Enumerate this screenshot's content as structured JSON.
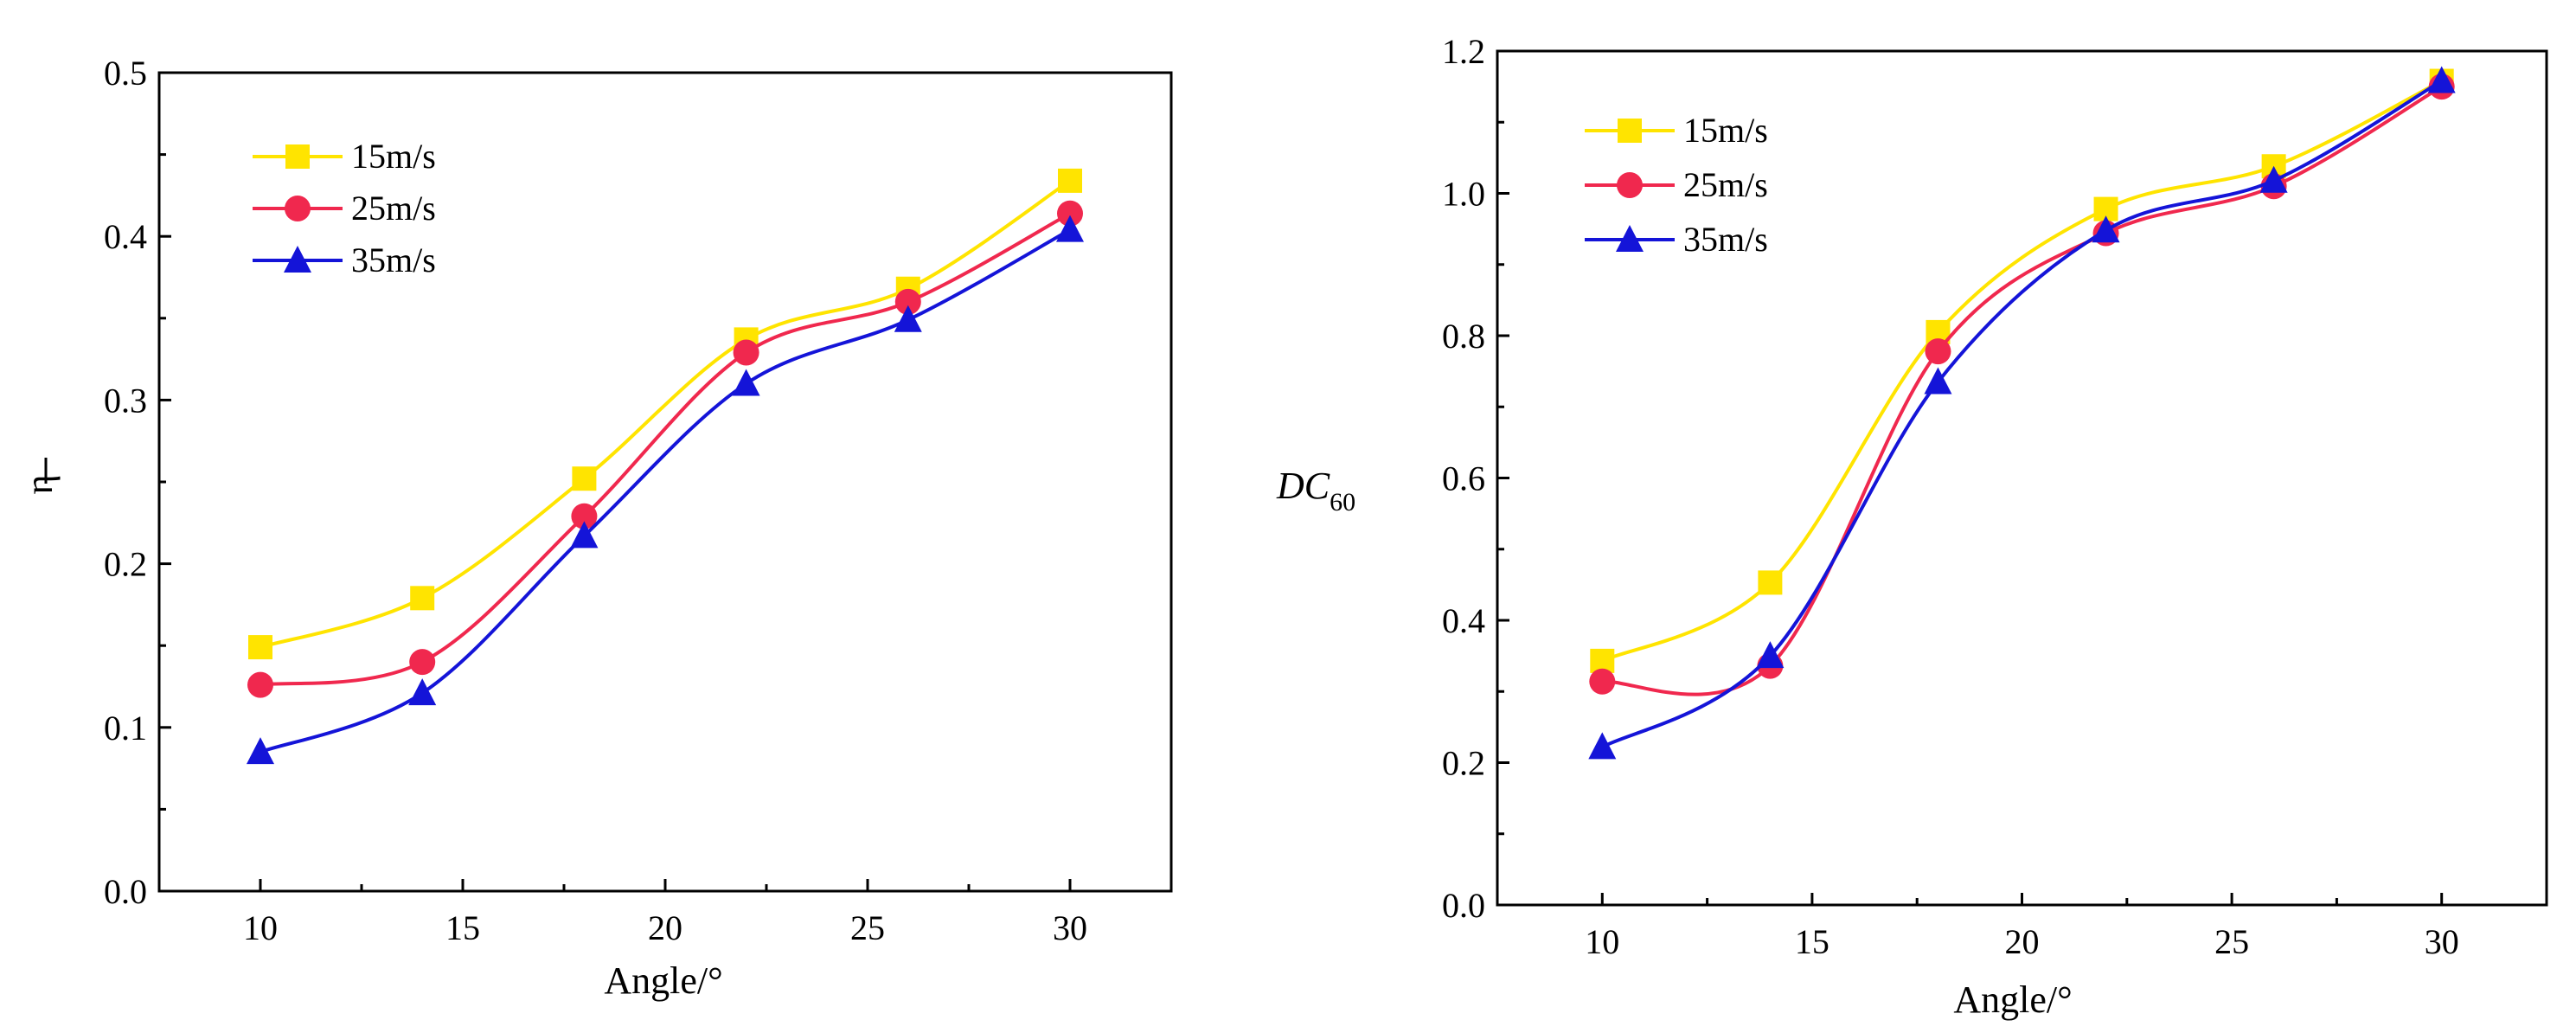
{
  "chart_data": [
    {
      "type": "line",
      "title": "",
      "xlabel": "Angle/°",
      "ylabel": "η",
      "ylabel_overbar": true,
      "xlim": [
        7.5,
        32.5
      ],
      "ylim": [
        0,
        0.5
      ],
      "xticks": [
        10,
        15,
        20,
        25,
        30
      ],
      "xtick_labels": [
        "10",
        "15",
        "20",
        "25",
        "30"
      ],
      "yticks": [
        0,
        0.1,
        0.2,
        0.3,
        0.4,
        0.5
      ],
      "ytick_labels": [
        "0.0",
        "0.1",
        "0.2",
        "0.3",
        "0.4",
        "0.5"
      ],
      "grid": false,
      "legend_position": "top-left",
      "x": [
        10,
        14,
        18,
        22,
        26,
        30
      ],
      "series": [
        {
          "name": "15m/s",
          "color": "#FFE400",
          "marker": "square",
          "values": [
            0.149,
            0.179,
            0.252,
            0.337,
            0.368,
            0.434
          ]
        },
        {
          "name": "25m/s",
          "color": "#F0284E",
          "marker": "circle",
          "values": [
            0.126,
            0.14,
            0.229,
            0.329,
            0.36,
            0.414
          ]
        },
        {
          "name": "35m/s",
          "color": "#1414D8",
          "marker": "triangle",
          "values": [
            0.085,
            0.121,
            0.217,
            0.31,
            0.349,
            0.404
          ]
        }
      ]
    },
    {
      "type": "line",
      "title": "",
      "xlabel": "Angle/°",
      "ylabel": "DC",
      "ylabel_sub": "60",
      "xlim": [
        7.5,
        32.5
      ],
      "ylim": [
        0,
        1.2
      ],
      "xticks": [
        10,
        15,
        20,
        25,
        30
      ],
      "xtick_labels": [
        "10",
        "15",
        "20",
        "25",
        "30"
      ],
      "yticks": [
        0,
        0.2,
        0.4,
        0.6,
        0.8,
        1.0,
        1.2
      ],
      "ytick_labels": [
        "0.0",
        "0.2",
        "0.4",
        "0.6",
        "0.8",
        "1.0",
        "1.2"
      ],
      "grid": false,
      "legend_position": "top-left",
      "x": [
        10,
        14,
        18,
        22,
        26,
        30
      ],
      "series": [
        {
          "name": "15m/s",
          "color": "#FFE400",
          "marker": "square",
          "values": [
            0.343,
            0.453,
            0.805,
            0.978,
            1.038,
            1.158
          ]
        },
        {
          "name": "25m/s",
          "color": "#F0284E",
          "marker": "circle",
          "values": [
            0.314,
            0.336,
            0.778,
            0.944,
            1.01,
            1.15
          ]
        },
        {
          "name": "35m/s",
          "color": "#1414D8",
          "marker": "triangle",
          "values": [
            0.222,
            0.35,
            0.735,
            0.948,
            1.018,
            1.158
          ]
        }
      ]
    }
  ]
}
